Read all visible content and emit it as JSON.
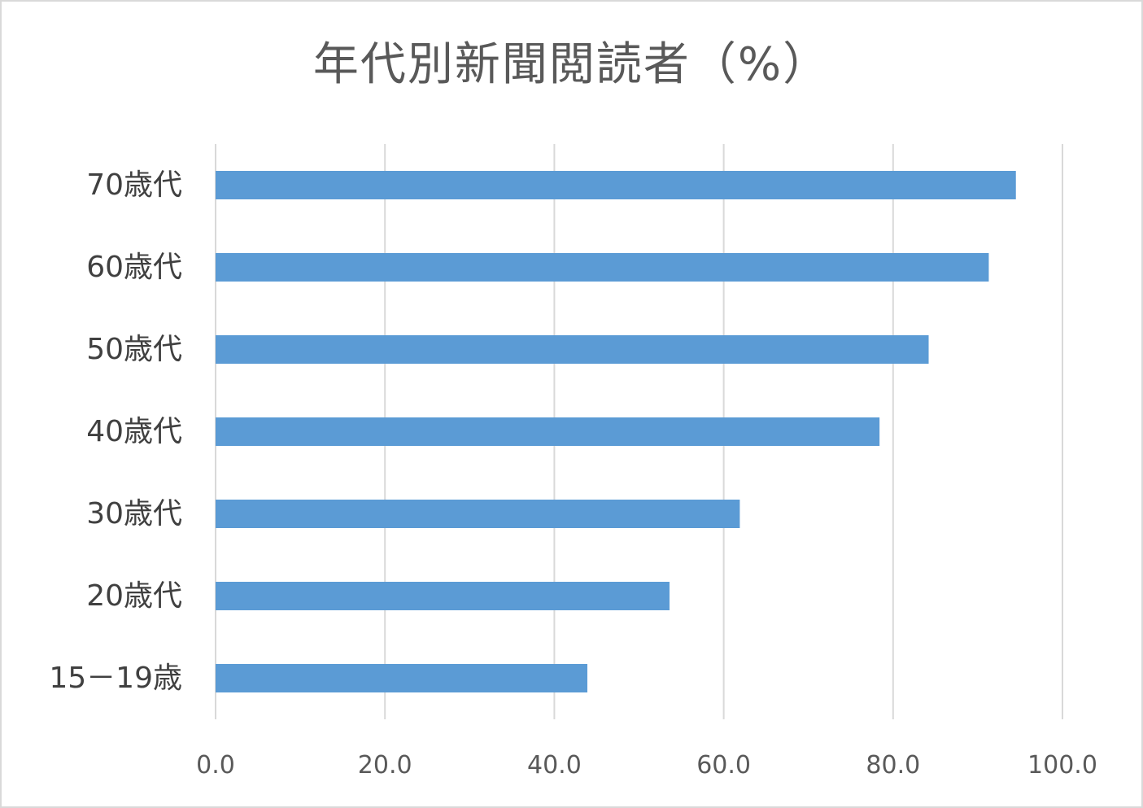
{
  "chart_data": {
    "type": "bar",
    "orientation": "horizontal",
    "title": "年代別新聞閲読者（%）",
    "categories": [
      "70歳代",
      "60歳代",
      "50歳代",
      "40歳代",
      "30歳代",
      "20歳代",
      "15－19歳"
    ],
    "values": [
      94.5,
      91.3,
      84.2,
      78.4,
      61.9,
      53.6,
      43.9
    ],
    "xlim": [
      0,
      100
    ],
    "x_ticks": [
      "0.0",
      "20.0",
      "40.0",
      "60.0",
      "80.0",
      "100.0"
    ],
    "grid": true,
    "legend": "none",
    "bar_color": "#5b9bd5",
    "gridline_color": "#d9d9d9",
    "frame_color": "#d9d9d9"
  }
}
